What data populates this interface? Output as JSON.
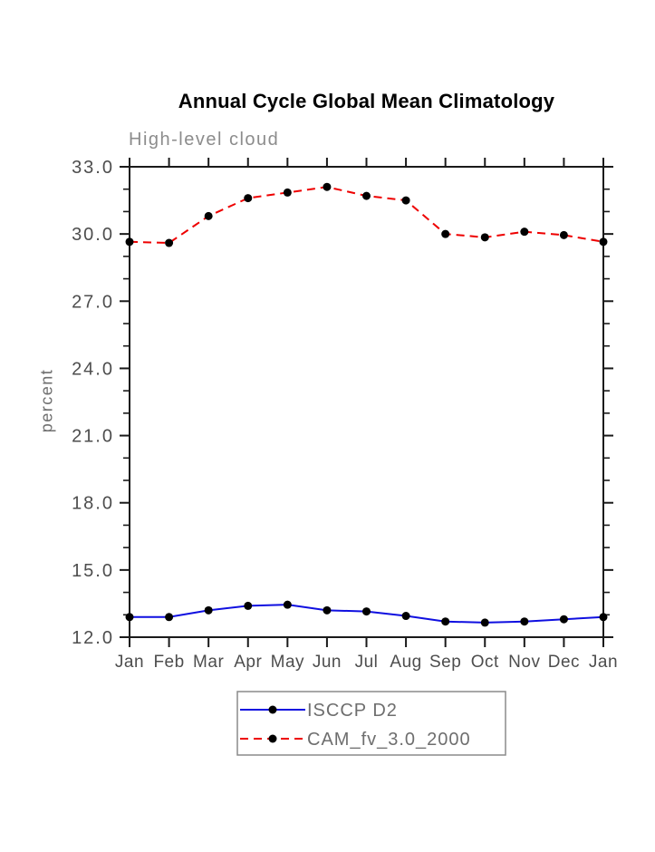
{
  "page": {
    "background": "#ffffff"
  },
  "chart_data": {
    "type": "line",
    "title": "Annual Cycle Global Mean Climatology",
    "subtitle": "High-level cloud",
    "ylabel": "percent",
    "xlabel": "",
    "categories": [
      "Jan",
      "Feb",
      "Mar",
      "Apr",
      "May",
      "Jun",
      "Jul",
      "Aug",
      "Sep",
      "Oct",
      "Nov",
      "Dec",
      "Jan"
    ],
    "ylim": [
      12.0,
      33.0
    ],
    "y_major_ticks": [
      33.0,
      30.0,
      27.0,
      24.0,
      21.0,
      18.0,
      15.0,
      12.0
    ],
    "y_major_tick_labels": [
      "33.0",
      "30.0",
      "27.0",
      "24.0",
      "21.0",
      "18.0",
      "15.0",
      "12.0"
    ],
    "y_minor_tick_step": 1.0,
    "grid": "off",
    "legend_position": "below-plot",
    "series": [
      {
        "name": "ISCCP D2",
        "color": "#0f0fe0",
        "line_style": "solid",
        "marker": "filled-circle",
        "marker_color": "#000000",
        "values": [
          12.9,
          12.9,
          13.2,
          13.4,
          13.45,
          13.2,
          13.15,
          12.95,
          12.7,
          12.65,
          12.7,
          12.8,
          12.9
        ]
      },
      {
        "name": "CAM_fv_3.0_2000",
        "color": "#ee0000",
        "line_style": "dashed",
        "marker": "filled-circle",
        "marker_color": "#000000",
        "values": [
          29.65,
          29.6,
          30.8,
          31.6,
          31.85,
          32.1,
          31.7,
          31.5,
          30.0,
          29.85,
          30.1,
          29.95,
          29.65
        ]
      }
    ],
    "colors": {
      "frame": "#1a1a1a",
      "tick_label": "#4d4d4d",
      "legend_text": "#6e6e6e",
      "legend_border": "#8a8a8a",
      "subtitle": "#8c8c8c"
    }
  }
}
